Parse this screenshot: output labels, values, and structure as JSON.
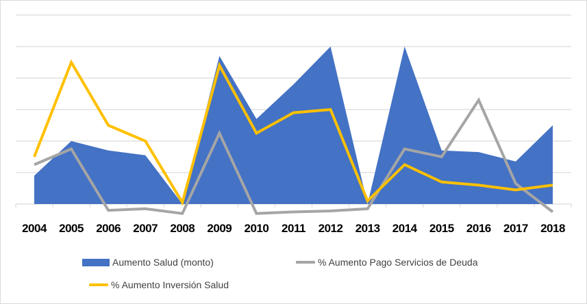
{
  "chart_data": {
    "type": "area+line",
    "title": "",
    "xlabel": "",
    "ylabel": "",
    "categories": [
      "2004",
      "2005",
      "2006",
      "2007",
      "2008",
      "2009",
      "2010",
      "2011",
      "2012",
      "2013",
      "2014",
      "2015",
      "2016",
      "2017",
      "2018"
    ],
    "units_note": "No y-axis tick labels shown; values expressed in gridline units (baseline 0, 6 gridlines above)",
    "ylim": [
      -0.5,
      6
    ],
    "grid": true,
    "legend_position": "bottom",
    "series": [
      {
        "name": "Aumento Salud (monto)",
        "type": "area",
        "color": "#4472C4",
        "values": [
          0.9,
          2.0,
          1.7,
          1.55,
          0.0,
          4.7,
          2.7,
          3.8,
          5.0,
          0.0,
          5.0,
          1.7,
          1.65,
          1.35,
          2.5
        ]
      },
      {
        "name": "% Aumento Pago Servicios de Deuda",
        "type": "line",
        "color": "#A5A5A5",
        "values": [
          1.25,
          1.75,
          -0.2,
          -0.15,
          -0.3,
          2.25,
          -0.3,
          -0.25,
          -0.22,
          -0.15,
          1.75,
          1.5,
          3.3,
          0.65,
          -0.25
        ]
      },
      {
        "name": "% Aumento Inversión Salud",
        "type": "line",
        "color": "#FFC000",
        "values": [
          1.5,
          4.5,
          2.5,
          2.0,
          0.05,
          4.4,
          2.25,
          2.9,
          3.0,
          0.1,
          1.25,
          0.7,
          0.6,
          0.45,
          0.6
        ]
      }
    ]
  },
  "legend": {
    "items": [
      {
        "label": "Aumento Salud (monto)",
        "color": "#4472C4",
        "kind": "area"
      },
      {
        "label": "% Aumento Pago Servicios de Deuda",
        "color": "#A5A5A5",
        "kind": "line"
      },
      {
        "label": "% Aumento Inversión Salud",
        "color": "#FFC000",
        "kind": "line"
      }
    ]
  },
  "colors": {
    "gridline": "#D9D9D9",
    "frame": "#D9D9D9",
    "axis_label": "#000000",
    "legend_text": "#404040"
  }
}
